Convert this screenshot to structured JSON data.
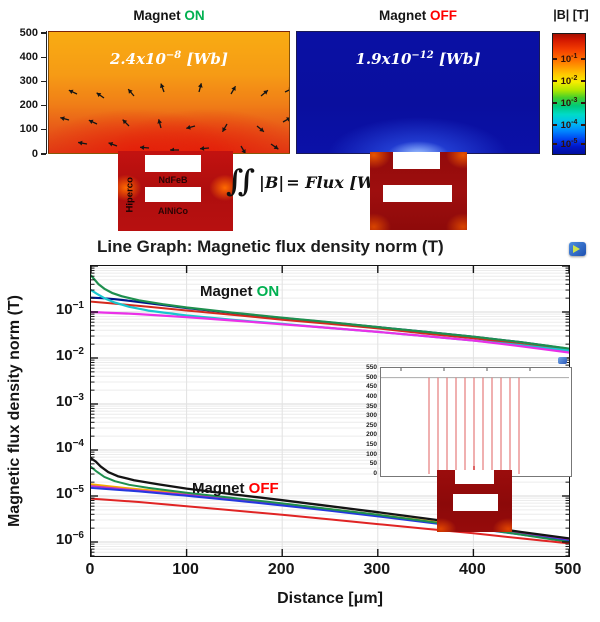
{
  "top": {
    "panel_on": {
      "title_prefix": "Magnet ",
      "title_state": "ON",
      "flux_base": "2.4x10",
      "flux_exp": "−8",
      "flux_unit": " [Wb]",
      "y_ticks": [
        500,
        400,
        300,
        200,
        100,
        0
      ],
      "arrows": [
        [
          28,
          62,
          205
        ],
        [
          55,
          66,
          215
        ],
        [
          85,
          64,
          230
        ],
        [
          115,
          60,
          250
        ],
        [
          150,
          60,
          285
        ],
        [
          182,
          62,
          300
        ],
        [
          212,
          64,
          320
        ],
        [
          236,
          60,
          335
        ],
        [
          20,
          88,
          195
        ],
        [
          48,
          92,
          205
        ],
        [
          80,
          94,
          225
        ],
        [
          112,
          96,
          255
        ],
        [
          146,
          94,
          165
        ],
        [
          178,
          92,
          120
        ],
        [
          208,
          94,
          40
        ],
        [
          234,
          90,
          330
        ],
        [
          38,
          112,
          190
        ],
        [
          68,
          114,
          200
        ],
        [
          100,
          116,
          185
        ],
        [
          130,
          118,
          180
        ],
        [
          160,
          116,
          175
        ],
        [
          192,
          114,
          60
        ],
        [
          222,
          112,
          35
        ]
      ]
    },
    "panel_off": {
      "title_prefix": "Magnet ",
      "title_state": "OFF",
      "flux_base": "1.9x10",
      "flux_exp": "−12",
      "flux_unit": " [Wb]"
    },
    "colorbar": {
      "title": "|B| [T]",
      "tick_exponents": [
        -1,
        -2,
        -3,
        -4,
        -5
      ],
      "tick_y": [
        25,
        47,
        69,
        91,
        110
      ]
    },
    "device_left": {
      "side_label": "Hiperco",
      "top_label": "NdFeB",
      "bottom_label": "AlNiCo"
    },
    "equation": {
      "integral": "∬",
      "b_term": "|B|",
      "rest": "= Flux [Wb]"
    }
  },
  "graph": {
    "title": "Line Graph: Magnetic flux density norm (T)",
    "ylabel": "Magnetic flux density norm (T)",
    "xlabel": "Distance [μm]",
    "annotation_on": {
      "prefix": "Magnet ",
      "state": "ON"
    },
    "annotation_off": {
      "prefix": "Magnet ",
      "state": "OFF"
    }
  },
  "chart_data": {
    "type": "line",
    "title": "Line Graph: Magnetic flux density norm (T)",
    "xlabel": "Distance [μm]",
    "ylabel": "Magnetic flux density norm (T)",
    "x_range": [
      0,
      500
    ],
    "y_scale": "log",
    "y_range": [
      5.5e-07,
      1.0
    ],
    "x_ticks": [
      0,
      100,
      200,
      300,
      400,
      500
    ],
    "y_tick_exponents": [
      -1,
      -2,
      -3,
      -4,
      -5,
      -6
    ],
    "grid": true,
    "legend": "none",
    "groups": [
      {
        "label": "Magnet ON",
        "series": [
          {
            "name": "navy",
            "color": "#001489",
            "width": 2.2,
            "points": [
              [
                0,
                0.205
              ],
              [
                12,
                0.2
              ],
              [
                25,
                0.19
              ],
              [
                40,
                0.175
              ],
              [
                60,
                0.155
              ],
              [
                100,
                0.122
              ],
              [
                150,
                0.094
              ],
              [
                200,
                0.074
              ],
              [
                250,
                0.059
              ],
              [
                300,
                0.047
              ],
              [
                350,
                0.037
              ],
              [
                400,
                0.029
              ],
              [
                450,
                0.022
              ],
              [
                500,
                0.0158
              ]
            ]
          },
          {
            "name": "red",
            "color": "#D42A1E",
            "width": 2.0,
            "points": [
              [
                0,
                0.168
              ],
              [
                20,
                0.155
              ],
              [
                40,
                0.142
              ],
              [
                60,
                0.13
              ],
              [
                100,
                0.108
              ],
              [
                150,
                0.086
              ],
              [
                200,
                0.068
              ],
              [
                250,
                0.055
              ],
              [
                300,
                0.044
              ],
              [
                350,
                0.034
              ],
              [
                400,
                0.027
              ],
              [
                450,
                0.02
              ],
              [
                500,
                0.0148
              ]
            ]
          },
          {
            "name": "green",
            "color": "#1E8F4E",
            "width": 2.2,
            "points": [
              [
                0,
                0.62
              ],
              [
                4,
                0.5
              ],
              [
                8,
                0.4
              ],
              [
                14,
                0.32
              ],
              [
                22,
                0.26
              ],
              [
                32,
                0.22
              ],
              [
                50,
                0.18
              ],
              [
                75,
                0.148
              ],
              [
                100,
                0.125
              ],
              [
                150,
                0.096
              ],
              [
                200,
                0.075
              ],
              [
                250,
                0.06
              ],
              [
                300,
                0.047
              ],
              [
                350,
                0.037
              ],
              [
                400,
                0.029
              ],
              [
                450,
                0.022
              ],
              [
                500,
                0.016
              ]
            ]
          },
          {
            "name": "cyan",
            "color": "#18C5CE",
            "width": 2.2,
            "points": [
              [
                0,
                0.3
              ],
              [
                6,
                0.25
              ],
              [
                14,
                0.2
              ],
              [
                25,
                0.16
              ],
              [
                40,
                0.13
              ],
              [
                60,
                0.107
              ],
              [
                100,
                0.084
              ],
              [
                150,
                0.067
              ],
              [
                200,
                0.055
              ],
              [
                250,
                0.045
              ],
              [
                300,
                0.037
              ],
              [
                350,
                0.03
              ],
              [
                400,
                0.024
              ],
              [
                450,
                0.019
              ],
              [
                500,
                0.0145
              ]
            ]
          },
          {
            "name": "magenta",
            "color": "#EA30E8",
            "width": 2.2,
            "points": [
              [
                0,
                0.1
              ],
              [
                50,
                0.09
              ],
              [
                100,
                0.077
              ],
              [
                150,
                0.065
              ],
              [
                200,
                0.054
              ],
              [
                250,
                0.045
              ],
              [
                300,
                0.037
              ],
              [
                350,
                0.03
              ],
              [
                400,
                0.024
              ],
              [
                450,
                0.018
              ],
              [
                500,
                0.0132
              ]
            ]
          }
        ]
      },
      {
        "label": "Magnet OFF",
        "series": [
          {
            "name": "orange",
            "color": "#F5A800",
            "width": 2.0,
            "points": [
              [
                0,
                1.8e-05
              ],
              [
                20,
                1.62e-05
              ],
              [
                50,
                1.4e-05
              ],
              [
                100,
                1.12e-05
              ],
              [
                150,
                8.8e-06
              ],
              [
                200,
                6.8e-06
              ],
              [
                250,
                5.2e-06
              ],
              [
                300,
                3.9e-06
              ],
              [
                350,
                2.9e-06
              ],
              [
                400,
                2.15e-06
              ],
              [
                450,
                1.55e-06
              ],
              [
                500,
                1.15e-06
              ]
            ]
          },
          {
            "name": "magenta",
            "color": "#BB2ECC",
            "width": 1.8,
            "points": [
              [
                0,
                1.65e-05
              ],
              [
                50,
                1.32e-05
              ],
              [
                100,
                1.06e-05
              ],
              [
                150,
                8.4e-06
              ],
              [
                200,
                6.5e-06
              ],
              [
                250,
                5e-06
              ],
              [
                300,
                3.75e-06
              ],
              [
                350,
                2.8e-06
              ],
              [
                400,
                2.05e-06
              ],
              [
                450,
                1.5e-06
              ],
              [
                500,
                1.1e-06
              ]
            ]
          },
          {
            "name": "blue",
            "color": "#2438DE",
            "width": 2.0,
            "points": [
              [
                0,
                1.5e-05
              ],
              [
                50,
                1.26e-05
              ],
              [
                100,
                1.01e-05
              ],
              [
                150,
                8e-06
              ],
              [
                200,
                6.2e-06
              ],
              [
                250,
                4.8e-06
              ],
              [
                300,
                3.6e-06
              ],
              [
                350,
                2.7e-06
              ],
              [
                400,
                2e-06
              ],
              [
                450,
                1.45e-06
              ],
              [
                500,
                1.05e-06
              ]
            ]
          },
          {
            "name": "green",
            "color": "#1E8F4E",
            "width": 2.0,
            "points": [
              [
                0,
                4.3e-05
              ],
              [
                6,
                3.4e-05
              ],
              [
                14,
                2.6e-05
              ],
              [
                25,
                2.1e-05
              ],
              [
                40,
                1.75e-05
              ],
              [
                60,
                1.5e-05
              ],
              [
                100,
                1.18e-05
              ],
              [
                150,
                9e-06
              ],
              [
                200,
                6.9e-06
              ],
              [
                250,
                5.2e-06
              ],
              [
                300,
                3.9e-06
              ],
              [
                350,
                2.85e-06
              ],
              [
                400,
                2.05e-06
              ],
              [
                450,
                1.45e-06
              ],
              [
                500,
                1e-06
              ]
            ]
          },
          {
            "name": "red",
            "color": "#E02424",
            "width": 2.0,
            "points": [
              [
                0,
                8.8e-06
              ],
              [
                50,
                7.4e-06
              ],
              [
                100,
                6e-06
              ],
              [
                150,
                4.85e-06
              ],
              [
                200,
                3.9e-06
              ],
              [
                250,
                3.1e-06
              ],
              [
                300,
                2.45e-06
              ],
              [
                350,
                1.95e-06
              ],
              [
                400,
                1.55e-06
              ],
              [
                450,
                1.2e-06
              ],
              [
                500,
                9.3e-07
              ]
            ]
          },
          {
            "name": "black",
            "color": "#141414",
            "width": 2.3,
            "points": [
              [
                0,
                6.6e-05
              ],
              [
                5,
                5.6e-05
              ],
              [
                10,
                4.4e-05
              ],
              [
                18,
                3.3e-05
              ],
              [
                28,
                2.7e-05
              ],
              [
                45,
                2.2e-05
              ],
              [
                70,
                1.8e-05
              ],
              [
                100,
                1.45e-05
              ],
              [
                150,
                1.08e-05
              ],
              [
                200,
                8.1e-06
              ],
              [
                250,
                6e-06
              ],
              [
                300,
                4.45e-06
              ],
              [
                350,
                3.25e-06
              ],
              [
                400,
                2.35e-06
              ],
              [
                450,
                1.65e-06
              ],
              [
                500,
                1.2e-06
              ]
            ]
          }
        ]
      }
    ],
    "annotations": [
      "Magnet ON",
      "Magnet OFF"
    ],
    "inset": {
      "y_ticks": [
        550,
        500,
        450,
        400,
        350,
        300,
        250,
        200,
        150,
        100,
        50,
        0
      ],
      "cutline_count": 11,
      "cutline_color": "#E06060",
      "cutline_top_value": 500,
      "cutline_bottom_value": 0
    }
  }
}
